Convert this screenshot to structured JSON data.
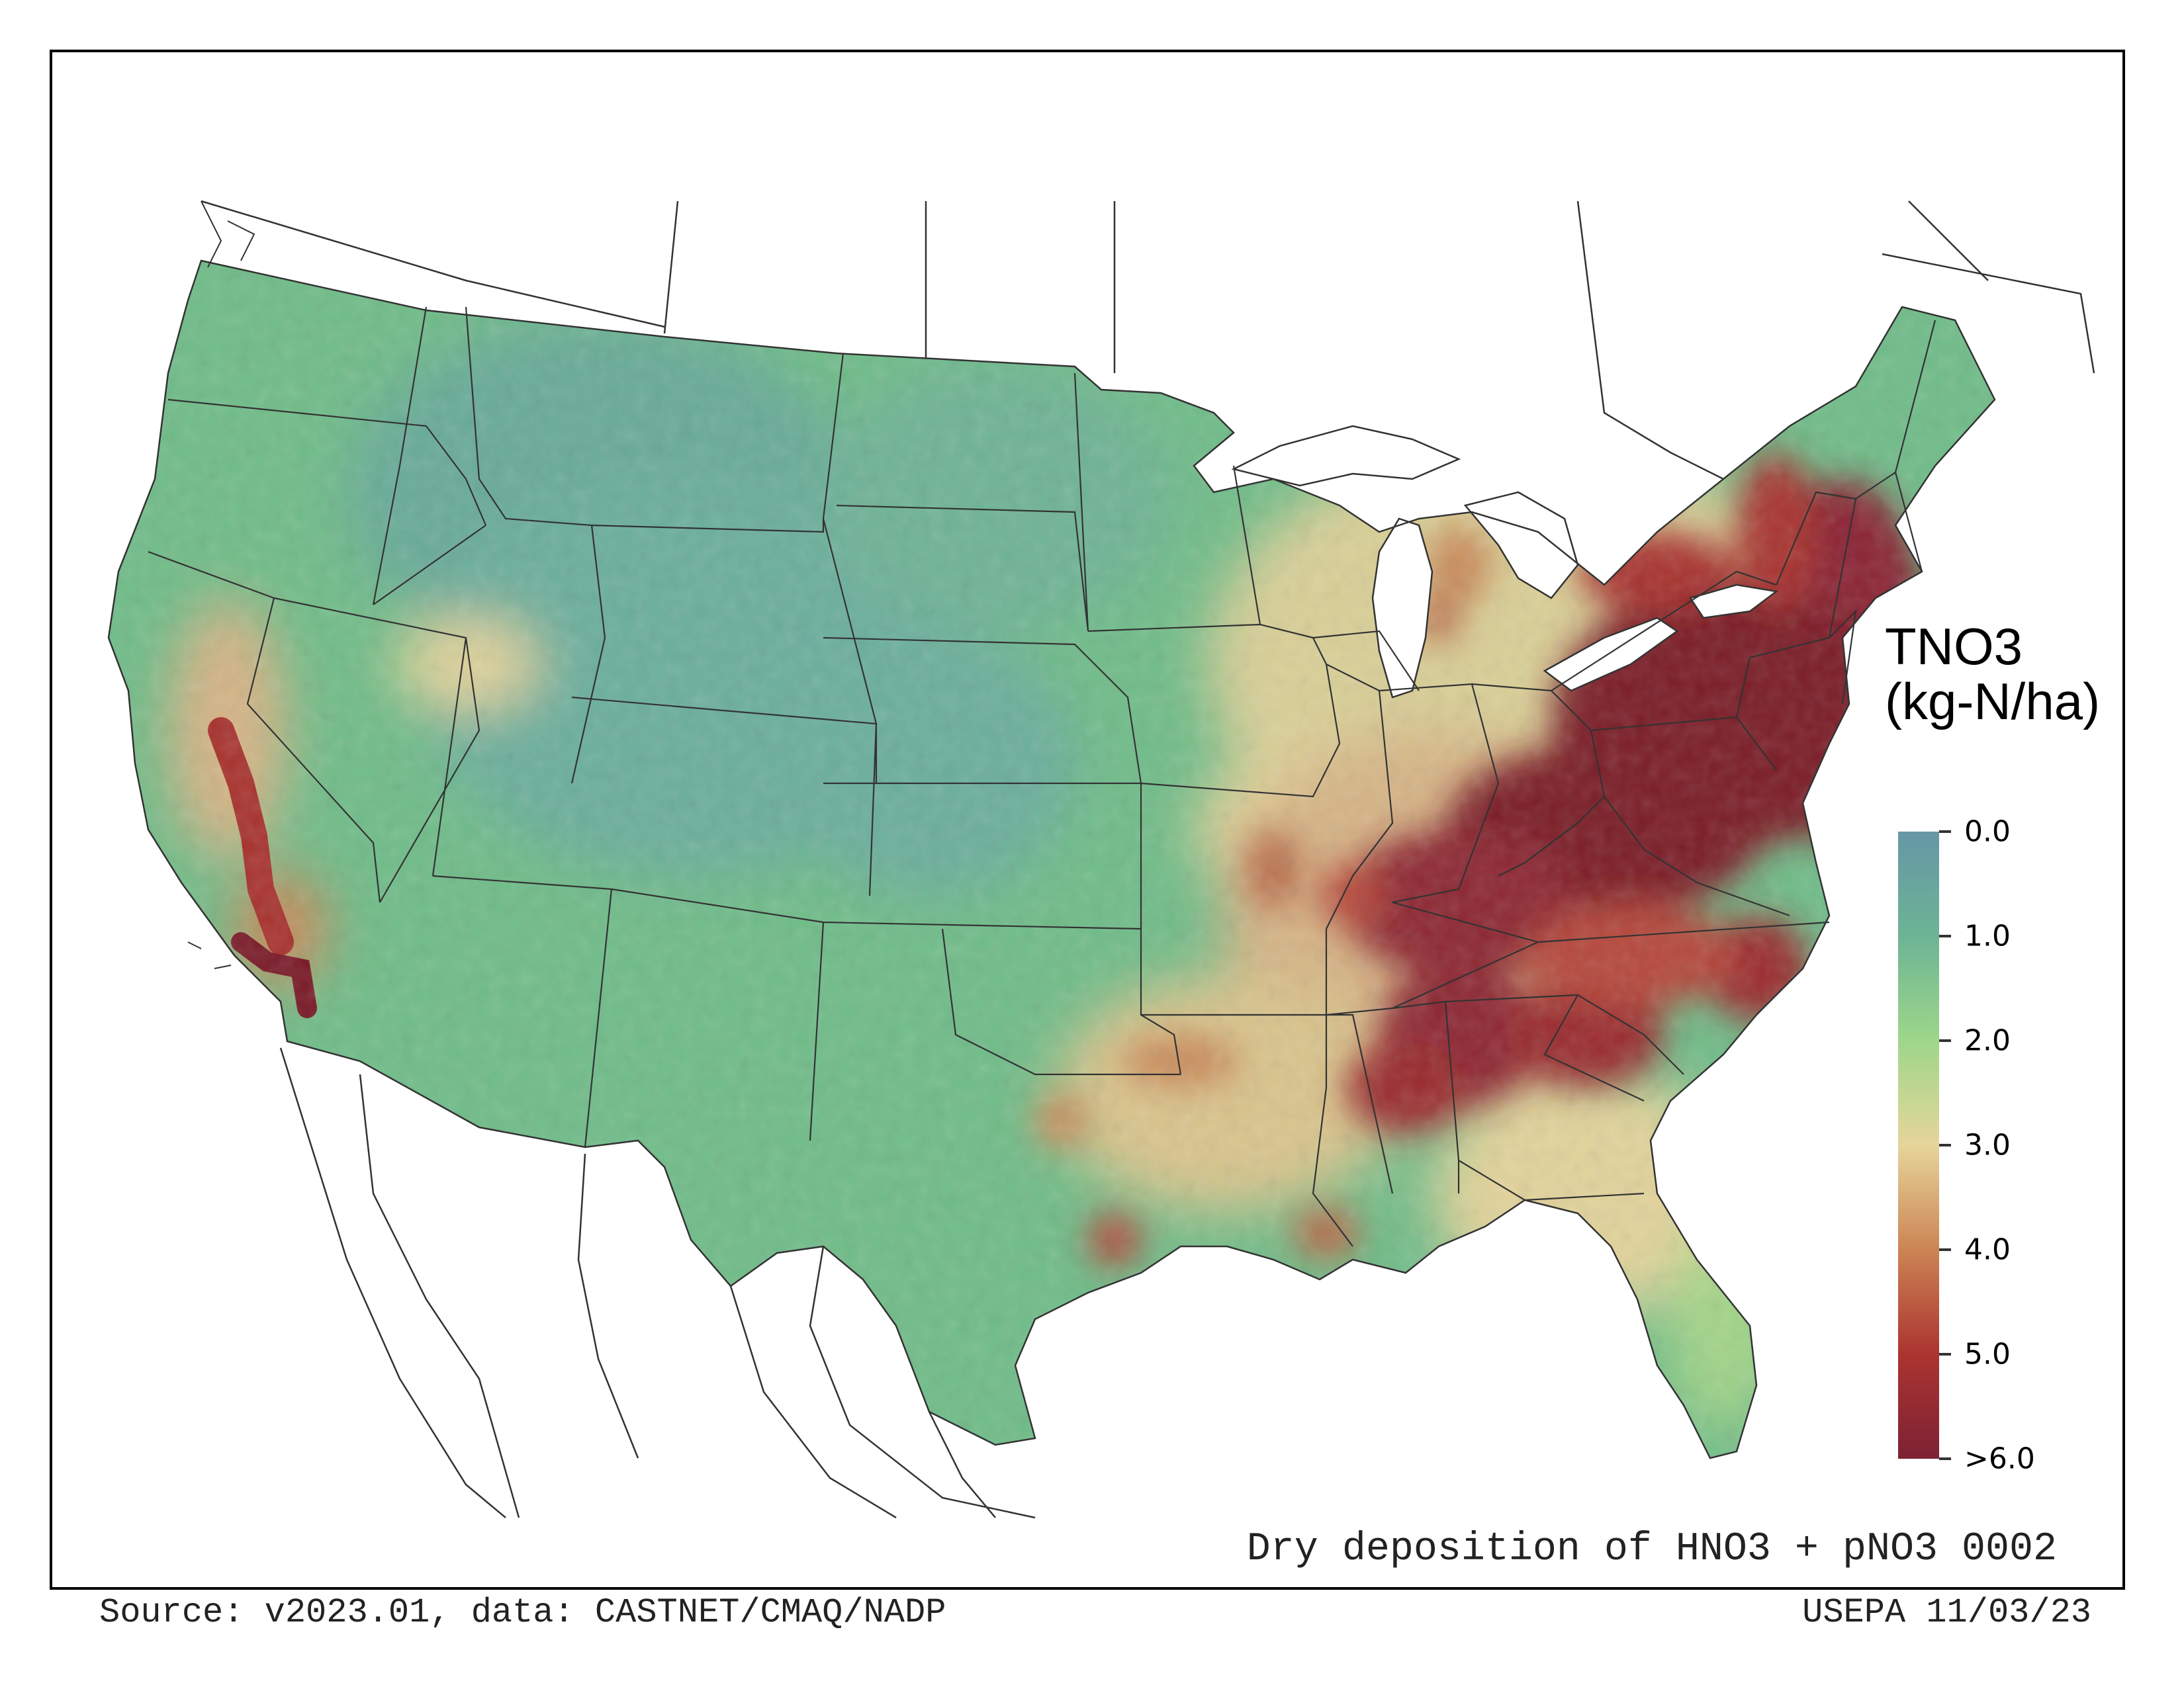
{
  "map": {
    "region": "Contiguous United States",
    "legend": {
      "title_line1": "TNO3",
      "title_line2": "(kg-N/ha)",
      "ticks": [
        "0.0",
        "1.0",
        "2.0",
        "3.0",
        "4.0",
        "5.0",
        ">6.0"
      ],
      "tick_values": [
        0,
        1,
        2,
        3,
        4,
        5,
        6
      ],
      "colors": [
        "#6697a6",
        "#6cb495",
        "#9ed78a",
        "#e6d59a",
        "#cc8454",
        "#ab3430",
        "#7d2235"
      ]
    },
    "caption": "Dry deposition of HNO3 + pNO3 0002",
    "source": "Source: v2023.01, data: CASTNET/CMAQ/NADP",
    "agency_date": "USEPA 11/03/23",
    "palette": {
      "low_teal": "#6aae9c",
      "green": "#72c283",
      "light_green": "#a8d78a",
      "tan": "#e4d49a",
      "brown": "#c98a5a",
      "red": "#a8322e",
      "dark_red": "#7a1a28",
      "borders": "#333333",
      "background": "#ffffff"
    }
  }
}
